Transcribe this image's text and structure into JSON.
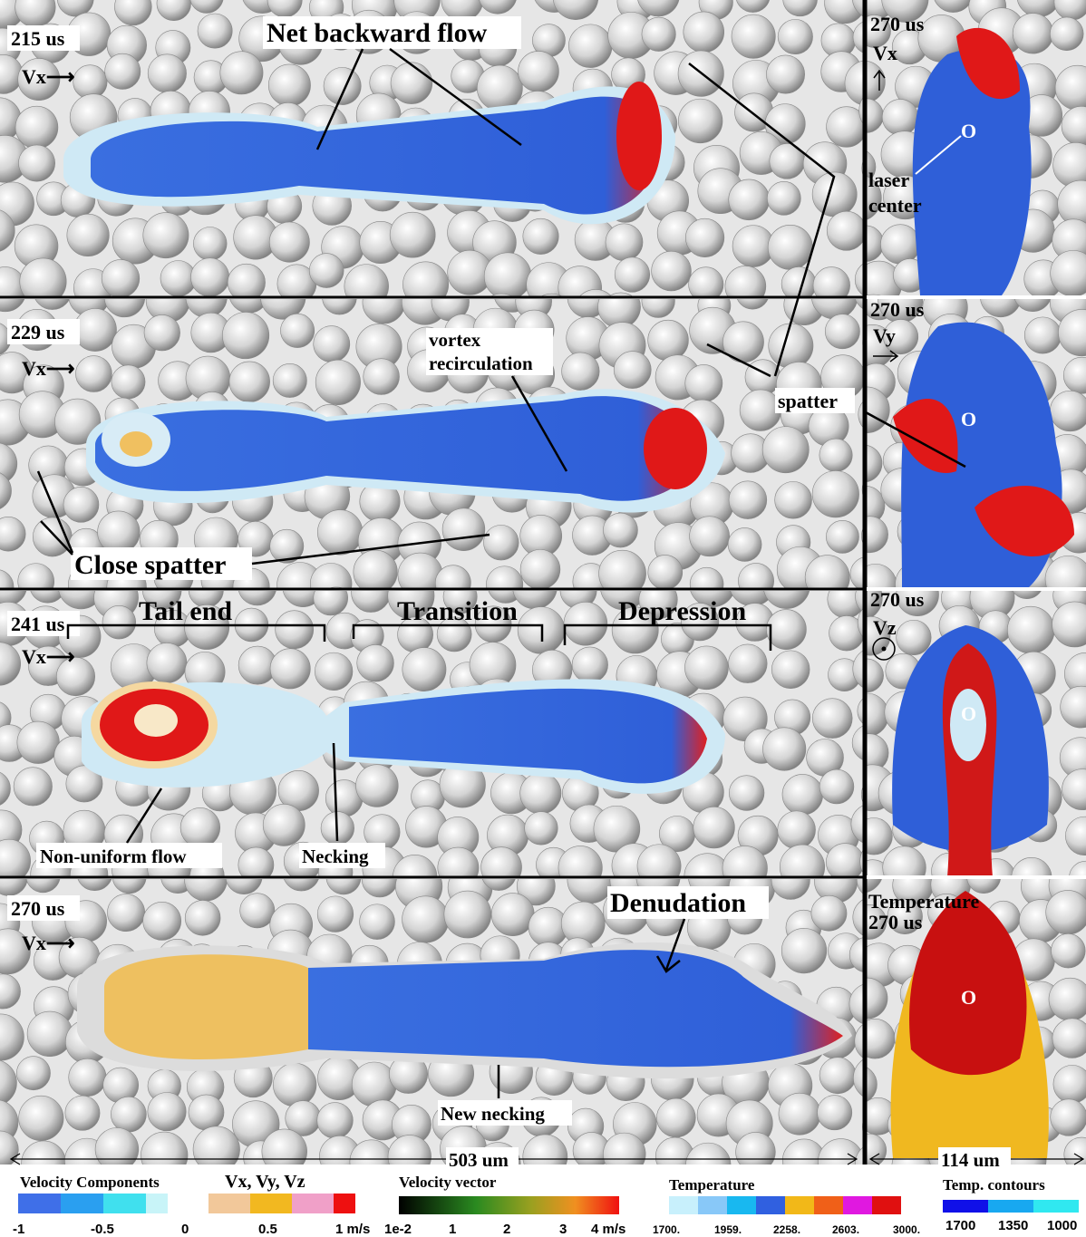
{
  "main_panels": [
    {
      "time": "215 us",
      "direction": "Vx⟶"
    },
    {
      "time": "229 us",
      "direction": "Vx⟶"
    },
    {
      "time": "241 us",
      "direction": "Vx⟶"
    },
    {
      "time": "270 us",
      "direction": "Vx⟶"
    }
  ],
  "side_panels": [
    {
      "time": "270 us",
      "direction": "Vx"
    },
    {
      "time": "270 us",
      "direction": "Vy"
    },
    {
      "time": "270 us",
      "direction": "Vz"
    },
    {
      "title": "Temperature",
      "time": "270 us"
    }
  ],
  "annotations": {
    "net_backward_flow": "Net backward flow",
    "vortex_recirculation": [
      "vortex",
      "recirculation"
    ],
    "spatter": "spatter",
    "close_spatter": "Close spatter",
    "tail_end": "Tail end",
    "transition": "Transition",
    "depression": "Depression",
    "non_uniform_flow": "Non-uniform flow",
    "necking": "Necking",
    "denudation": "Denudation",
    "new_necking": "New necking",
    "laser_center": [
      "laser",
      "center"
    ],
    "laser_marker": "O"
  },
  "scale_bars": [
    "503 um",
    "114 um"
  ],
  "legends": [
    {
      "title": "Velocity  Components",
      "labels": [
        "-1",
        "-0.5",
        "0"
      ]
    },
    {
      "title": "Vx, Vy, Vz",
      "labels": [
        "0.5",
        "1 m/s"
      ]
    },
    {
      "title": "Velocity vector",
      "labels": [
        "1e-2",
        "1",
        "2",
        "3",
        "4 m/s"
      ]
    },
    {
      "title": "Temperature",
      "labels": [
        "1700.",
        "1959.",
        "2258.",
        "2603.",
        "3000."
      ]
    },
    {
      "title": "Temp. contours",
      "labels": [
        "1700",
        "1350",
        "1000"
      ]
    }
  ]
}
